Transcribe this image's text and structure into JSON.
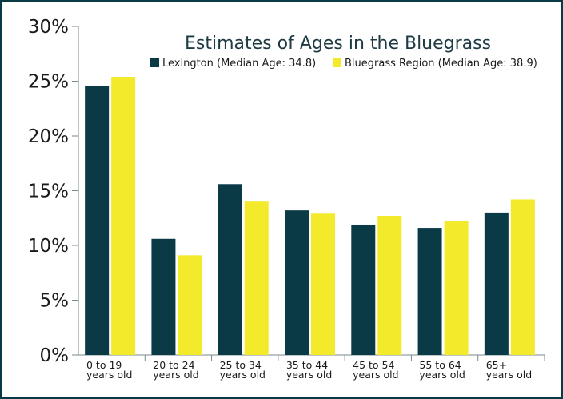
{
  "chart_data": {
    "type": "bar",
    "title": "Estimates of Ages in the Bluegrass",
    "xlabel": "",
    "ylabel": "",
    "ylim": [
      0,
      30
    ],
    "yticks": [
      "0%",
      "5%",
      "10%",
      "15%",
      "20%",
      "25%",
      "30%"
    ],
    "ytick_values": [
      0,
      5,
      10,
      15,
      20,
      25,
      30
    ],
    "categories": [
      [
        "0 to 19",
        "years old"
      ],
      [
        "20 to 24",
        "years old"
      ],
      [
        "25 to 34",
        "years old"
      ],
      [
        "35 to 44",
        "years old"
      ],
      [
        "45 to 54",
        "years old"
      ],
      [
        "55 to 64",
        "years old"
      ],
      [
        "65+",
        "years old"
      ]
    ],
    "series": [
      {
        "name": "Lexington (Median Age: 34.8)",
        "color": "#0b3a47",
        "values": [
          24.6,
          10.6,
          15.6,
          13.2,
          11.9,
          11.6,
          13.0
        ]
      },
      {
        "name": "Bluegrass Region (Median Age: 38.9)",
        "color": "#f2ea2a",
        "values": [
          25.4,
          9.1,
          14.0,
          12.9,
          12.7,
          12.2,
          14.2
        ]
      }
    ],
    "grid": false,
    "legend_position": "top-right"
  }
}
